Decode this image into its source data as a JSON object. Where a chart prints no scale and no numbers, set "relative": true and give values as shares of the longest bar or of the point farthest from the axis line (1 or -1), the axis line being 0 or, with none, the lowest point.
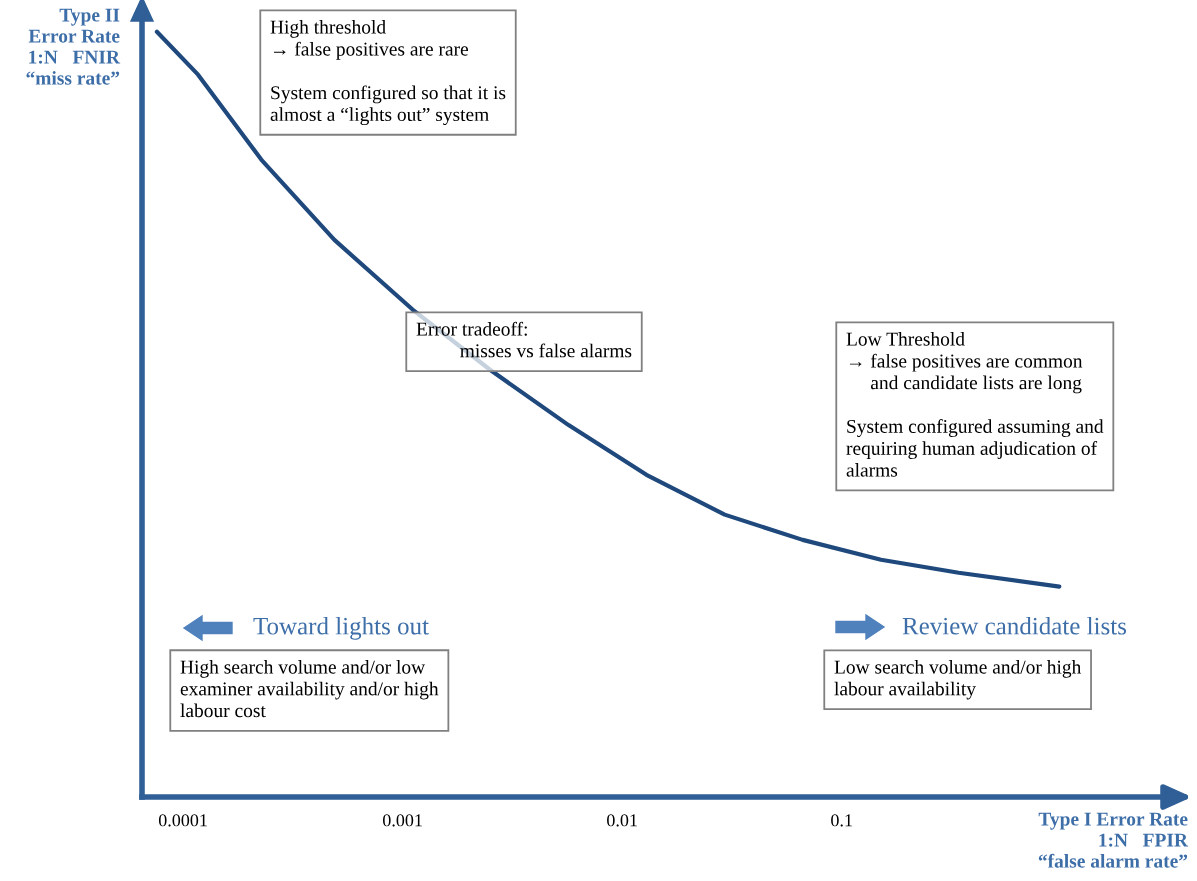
{
  "chart_data": {
    "type": "line",
    "xlabel": "Type I Error Rate\n1:N   FPIR\n“false alarm rate”",
    "ylabel": "Type II\nError Rate\n1:N   FNIR\n“miss rate”",
    "log": "x",
    "relative": true,
    "xlim": [
      6.5e-05,
      3
    ],
    "xticks": [
      0.0001,
      0.001,
      0.01,
      0.1
    ],
    "x": [
      7.6e-05,
      0.000117,
      0.000227,
      0.000489,
      0.00111,
      0.00251,
      0.0057,
      0.0129,
      0.0293,
      0.0664,
      0.151,
      0.341,
      0.98
    ],
    "series": [
      {
        "color": "#1f497d",
        "values": [
          1.0,
          0.944,
          0.833,
          0.728,
          0.637,
          0.558,
          0.486,
          0.421,
          0.369,
          0.336,
          0.31,
          0.293,
          0.275
        ]
      }
    ],
    "annotations": [
      "High threshold\n→ false positives are rare\n\nSystem configured so that it is\nalmost a “lights out” system",
      "Error tradeoff:\n         misses vs false alarms",
      "Low Threshold\n→ false positives are common\n     and candidate lists are long\n\nSystem configured assuming and\nrequiring human adjudication of\nalarms",
      "Toward lights out",
      "High search volume and/or low\nexaminer availability and/or high\nlabour cost",
      "Review candidate lists",
      "Low search volume and/or high\nlabour availability"
    ]
  }
}
